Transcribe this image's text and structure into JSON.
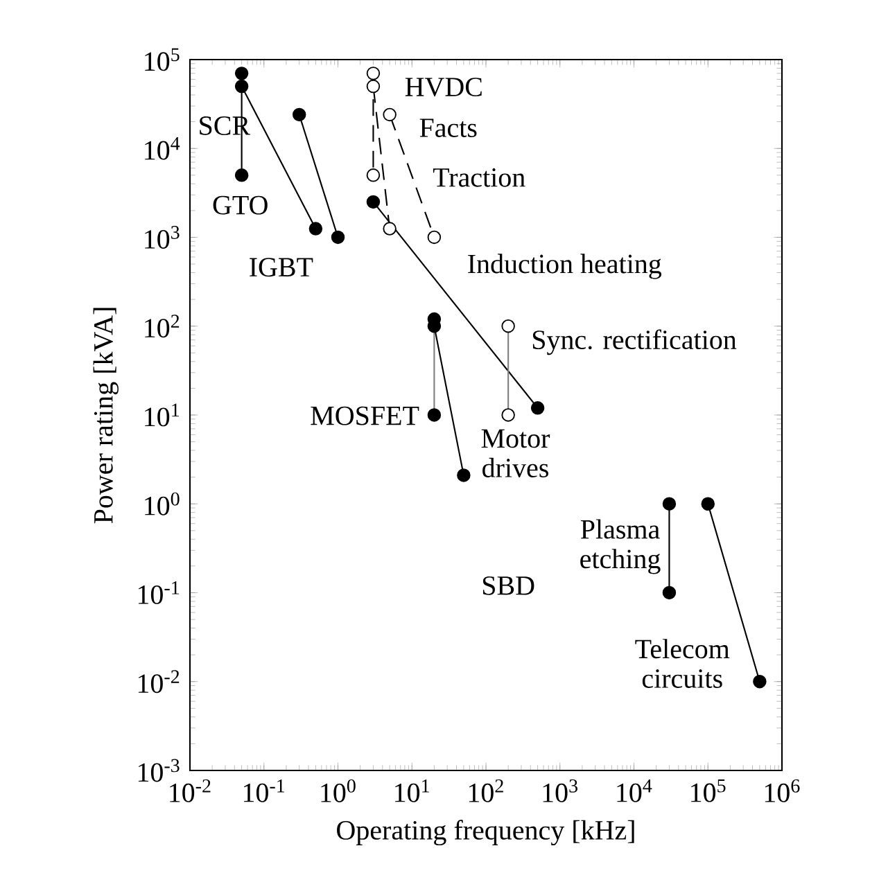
{
  "chart_data": {
    "type": "line",
    "xlabel": "Operating frequency [kHz]",
    "ylabel": "Power rating [kVA]",
    "log": "xy",
    "grid": false,
    "marker": "circle",
    "xlim": [
      0.01,
      1000000
    ],
    "ylim": [
      0.001,
      100000
    ],
    "xticks": [
      {
        "value": 0.01,
        "label": "10$^{-2}$"
      },
      {
        "value": 0.1,
        "label": "10$^{-1}$"
      },
      {
        "value": 1,
        "label": "10$^{0}$"
      },
      {
        "value": 10,
        "label": "10$^{1}$"
      },
      {
        "value": 100,
        "label": "10$^{2}$"
      },
      {
        "value": 1000,
        "label": "10$^{3}$"
      },
      {
        "value": 10000,
        "label": "10$^{4}$"
      },
      {
        "value": 100000,
        "label": "10$^{5}$"
      },
      {
        "value": 1000000,
        "label": "10$^{6}$"
      }
    ],
    "yticks": [
      {
        "value": 0.001,
        "label": "10$^{-3}$"
      },
      {
        "value": 0.01,
        "label": "10$^{-2}$"
      },
      {
        "value": 0.1,
        "label": "10$^{-1}$"
      },
      {
        "value": 1,
        "label": "10$^{0}$"
      },
      {
        "value": 10,
        "label": "10$^{1}$"
      },
      {
        "value": 100,
        "label": "10$^{2}$"
      },
      {
        "value": 1000,
        "label": "10$^{3}$"
      },
      {
        "value": 10000,
        "label": "10$^{4}$"
      },
      {
        "value": 100000,
        "label": "10$^{5}$"
      }
    ],
    "series": [
      {
        "color": "#000000",
        "line_style": "solid",
        "x": [
          0.05,
          0.05
        ],
        "values": [
          70000,
          5000
        ]
      },
      {
        "color": "#000000",
        "line_style": "solid",
        "x": [
          0.05,
          0.5
        ],
        "values": [
          50000,
          1250
        ]
      },
      {
        "color": "#000000",
        "line_style": "solid",
        "x": [
          0.3,
          1
        ],
        "values": [
          24000,
          1000
        ]
      },
      {
        "color": "#000000",
        "marker": "open circle",
        "line_style": "dashed",
        "x": [
          3,
          3
        ],
        "values": [
          70000,
          5000
        ]
      },
      {
        "color": "#000000",
        "marker": "open circle",
        "line_style": "dashed",
        "x": [
          3,
          5
        ],
        "values": [
          50000,
          1250
        ]
      },
      {
        "color": "#000000",
        "marker": "open circle",
        "line_style": "dashed",
        "x": [
          5,
          20
        ],
        "values": [
          24000,
          1000
        ]
      },
      {
        "color": "#000000",
        "line_style": "solid",
        "x": [
          3,
          500
        ],
        "values": [
          2500,
          12
        ]
      },
      {
        "color": "#808080",
        "line_style": "solid",
        "x": [
          20,
          20
        ],
        "values": [
          120,
          10
        ]
      },
      {
        "color": "#000000",
        "line_style": "solid",
        "x": [
          20,
          50
        ],
        "values": [
          100,
          2.1
        ]
      },
      {
        "color": "#808080",
        "marker": "open circle",
        "line_style": "solid",
        "x": [
          200,
          200
        ],
        "values": [
          100,
          10
        ]
      },
      {
        "color": "#000000",
        "line_style": "solid",
        "x": [
          30000,
          30000
        ],
        "values": [
          1,
          0.1
        ]
      },
      {
        "color": "#000000",
        "line_style": "solid",
        "x": [
          100000,
          500000
        ],
        "values": [
          1,
          0.01
        ]
      }
    ],
    "annotations": [
      "SCR",
      "GTO",
      "IGBT",
      "HVDC",
      "Facts",
      "Traction",
      "Induction heating",
      "Sync. rectification",
      "MOSFET",
      "Motor drives",
      "Plasma etching",
      "SBD",
      "Telecom circuits"
    ]
  }
}
